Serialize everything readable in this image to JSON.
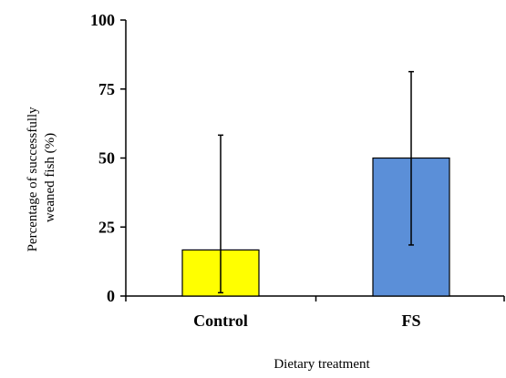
{
  "chart_data": {
    "type": "bar",
    "categories": [
      "Control",
      "FS"
    ],
    "values": [
      16.7,
      50
    ],
    "error_low": [
      1.2,
      18.5
    ],
    "error_high": [
      58.3,
      81.3
    ],
    "bar_colors": [
      "#FFFF00",
      "#5B8FD8"
    ],
    "xlabel": "Dietary treatment",
    "ylabel_lines": [
      "Percentage of successfully",
      "weaned fish (%)"
    ],
    "ylim": [
      0,
      100
    ],
    "yticks": [
      "0",
      "25",
      "50",
      "75",
      "100"
    ],
    "grid": false,
    "legend": "none"
  }
}
